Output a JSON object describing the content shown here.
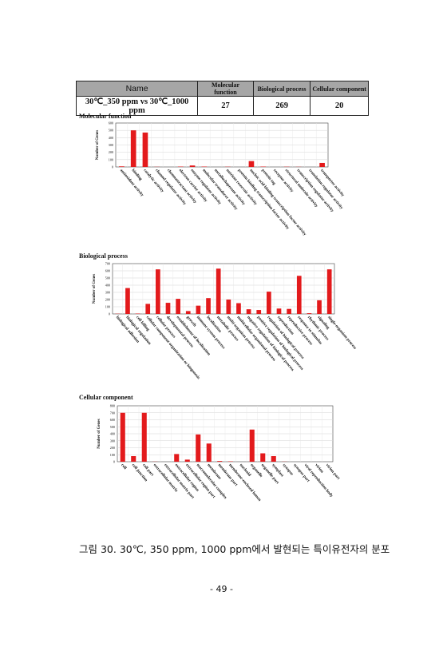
{
  "table": {
    "headers": [
      "Name",
      "Molecular function",
      "Biological process",
      "Cellular component"
    ],
    "row": [
      "30℃_350 ppm vs 30℃_1000 ppm",
      "27",
      "269",
      "20"
    ]
  },
  "bar_color": "#e31a1c",
  "chart_data": [
    {
      "type": "bar",
      "title": "Molecular function",
      "ylabel": "Number of Genes",
      "xlabel": "",
      "ylim": [
        0,
        600
      ],
      "yticks": [
        0,
        100,
        200,
        300,
        400,
        500,
        600
      ],
      "grid": true,
      "categories": [
        "antioxidant activity",
        "binding",
        "catalytic activity",
        "channel regulator activity",
        "chemoattractant activity",
        "electron carrier activity",
        "enzyme regulator activity",
        "molecular transducer activity",
        "metallochaperone activity",
        "nutrient reservoir activity",
        "protein binding transcription factor activity",
        "nucleic acid binding transcription factor activity",
        "protein tag",
        "receptor activity",
        "structural molecule activity",
        "transcription regulator activity",
        "translation regulator activity",
        "transporter activity"
      ],
      "values": [
        8,
        500,
        470,
        2,
        0,
        5,
        20,
        5,
        0,
        3,
        0,
        80,
        5,
        0,
        3,
        2,
        0,
        55
      ]
    },
    {
      "type": "bar",
      "title": "Biological process",
      "ylabel": "Number of Genes",
      "xlabel": "",
      "ylim": [
        0,
        700
      ],
      "yticks": [
        0,
        100,
        200,
        300,
        400,
        500,
        600,
        700
      ],
      "grid": true,
      "categories": [
        "biological adhesion",
        "biological regulation",
        "cell killing",
        "cellular component organization or biogenesis",
        "cellular process",
        "developmental process",
        "establishment of localization",
        "growth",
        "immune system process",
        "localization",
        "metabolic process",
        "multi-organism process",
        "multicellular organismal process",
        "negative regulation of biological process",
        "positive regulation of biological process",
        "regulation of biological process",
        "reproduction",
        "reproductive process",
        "response to stimulus",
        "rhythmic process",
        "signaling",
        "single-organism process"
      ],
      "values": [
        3,
        360,
        5,
        140,
        620,
        155,
        210,
        40,
        115,
        220,
        630,
        200,
        150,
        65,
        55,
        310,
        75,
        70,
        530,
        10,
        190,
        620
      ]
    },
    {
      "type": "bar",
      "title": "Cellular component",
      "ylabel": "Number of Genes",
      "xlabel": "",
      "ylim": [
        0,
        800
      ],
      "yticks": [
        0,
        100,
        200,
        300,
        400,
        500,
        600,
        700,
        800
      ],
      "grid": true,
      "categories": [
        "cell",
        "cell junction",
        "cell part",
        "extracellular matrix",
        "extracellular matrix part",
        "extracellular region",
        "extracellular region part",
        "macromolecular complex",
        "membrane",
        "membrane part",
        "membrane-enclosed lumen",
        "nucleoid",
        "organelle",
        "organelle part",
        "symplast",
        "synapse",
        "synapse part",
        "viral reproduction body",
        "virion",
        "virion part"
      ],
      "values": [
        700,
        80,
        700,
        2,
        0,
        110,
        30,
        390,
        260,
        10,
        5,
        0,
        460,
        120,
        80,
        2,
        0,
        0,
        0,
        0
      ]
    }
  ],
  "caption": "그림 30.  30℃, 350 ppm, 1000 ppm에서 발현되는 특이유전자의 분포",
  "page_number": "- 49 -"
}
